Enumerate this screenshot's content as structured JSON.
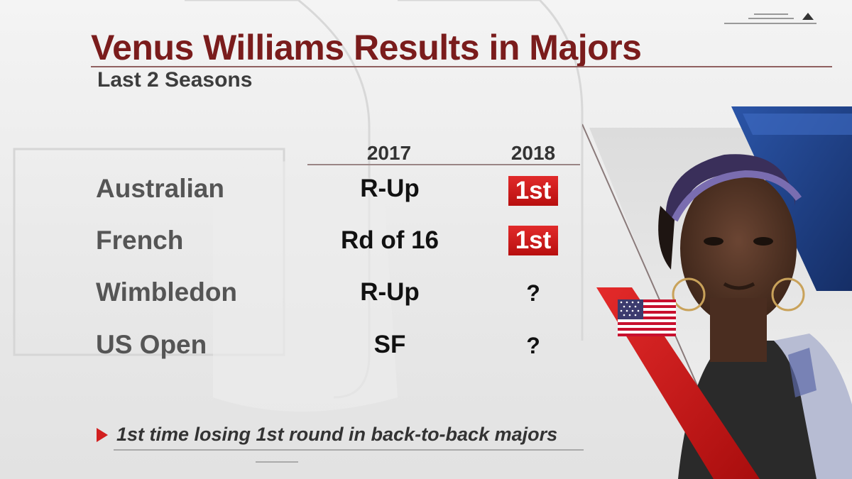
{
  "header": {
    "title": "Venus Williams Results in Majors",
    "subtitle": "Last 2 Seasons"
  },
  "table": {
    "years": [
      "2017",
      "2018"
    ],
    "rows": [
      {
        "event": "Australian",
        "y2017": "R-Up",
        "y2018": "1st",
        "y2018_highlight": true
      },
      {
        "event": "French",
        "y2017": "Rd of 16",
        "y2018": "1st",
        "y2018_highlight": true
      },
      {
        "event": "Wimbledon",
        "y2017": "R-Up",
        "y2018": "?",
        "y2018_highlight": false
      },
      {
        "event": "US Open",
        "y2017": "SF",
        "y2018": "?",
        "y2018_highlight": false
      }
    ]
  },
  "footnote": {
    "text": "1st time losing 1st round in back-to-back majors"
  },
  "colors": {
    "title": "#7a1c1c",
    "accent_red": "#d21f1f",
    "accent_blue": "#1f3f8c"
  },
  "decor": {
    "flag_icon": "us-flag-icon",
    "arrow_icon": "play-arrow-icon"
  }
}
